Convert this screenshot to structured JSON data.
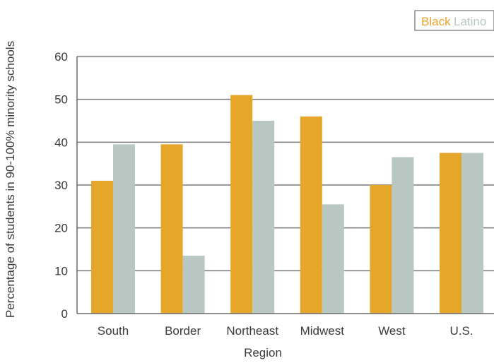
{
  "chart_data": {
    "type": "bar",
    "title": "",
    "xlabel": "Region",
    "ylabel": "Percentage of students in 90-100% minority schools",
    "categories": [
      "South",
      "Border",
      "Northeast",
      "Midwest",
      "West",
      "U.S."
    ],
    "series": [
      {
        "name": "Black",
        "color": "#e6a629",
        "values": [
          31,
          39.5,
          51,
          46,
          30,
          37.5
        ]
      },
      {
        "name": "Latino",
        "color": "#b8c7c1",
        "values": [
          39.5,
          13.5,
          45,
          25.5,
          36.5,
          37.5
        ]
      }
    ],
    "ylim": [
      0,
      60
    ],
    "yticks": [
      0,
      10,
      20,
      30,
      40,
      50,
      60
    ],
    "grid": true,
    "legend_position": "top-right"
  }
}
